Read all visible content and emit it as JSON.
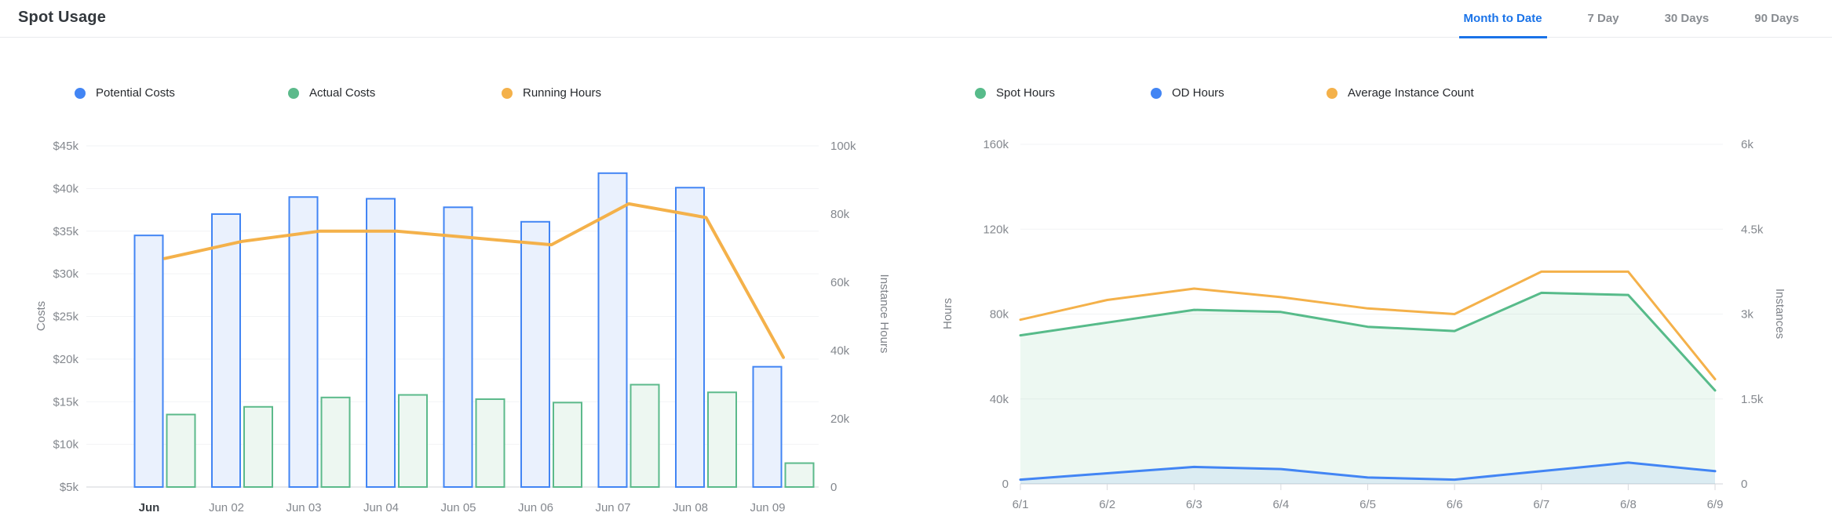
{
  "header": {
    "title": "Spot Usage",
    "tabs": [
      {
        "label": "Month to Date",
        "active": true
      },
      {
        "label": "7 Day",
        "active": false
      },
      {
        "label": "30 Days",
        "active": false
      },
      {
        "label": "90 Days",
        "active": false
      }
    ],
    "active_tab_color": "#1a73e8"
  },
  "chart_data": [
    {
      "id": "spot-usage-costs",
      "type": "bar",
      "title": "",
      "categories": [
        "Jun",
        "Jun 02",
        "Jun 03",
        "Jun 04",
        "Jun 05",
        "Jun 06",
        "Jun 07",
        "Jun 08",
        "Jun 09"
      ],
      "emphasized_first_category": true,
      "series": [
        {
          "name": "Potential Costs",
          "type": "bar",
          "axis": "left",
          "color": "#4285f4",
          "fill": "#eaf1fd",
          "values": [
            34500,
            37000,
            39000,
            38800,
            37800,
            36100,
            41800,
            40100,
            19100
          ]
        },
        {
          "name": "Actual Costs",
          "type": "bar",
          "axis": "left",
          "color": "#5cba8b",
          "fill": "#edf7f1",
          "values": [
            13500,
            14400,
            15500,
            15800,
            15300,
            14900,
            17000,
            16100,
            7800
          ]
        },
        {
          "name": "Running Hours",
          "type": "line",
          "axis": "right",
          "color": "#f4b14a",
          "values": [
            67000,
            72000,
            75000,
            75000,
            73000,
            71000,
            83000,
            79000,
            38000
          ]
        }
      ],
      "left_axis": {
        "label": "Costs",
        "min": 5000,
        "max": 45000,
        "ticks": [
          "$45k",
          "$40k",
          "$35k",
          "$30k",
          "$25k",
          "$20k",
          "$15k",
          "$10k",
          "$5k"
        ]
      },
      "right_axis": {
        "label": "Instance Hours",
        "min": 0,
        "max": 100000,
        "ticks": [
          "100k",
          "80k",
          "60k",
          "40k",
          "20k",
          "0"
        ]
      },
      "grid": true,
      "legend_position": "top"
    },
    {
      "id": "spot-usage-hours",
      "type": "area",
      "title": "",
      "categories": [
        "6/1",
        "6/2",
        "6/3",
        "6/4",
        "6/5",
        "6/6",
        "6/7",
        "6/8",
        "6/9"
      ],
      "emphasized_first_category": false,
      "series": [
        {
          "name": "Spot Hours",
          "type": "area",
          "axis": "left",
          "color": "#57bb8a",
          "fill_rgba": "rgba(87,187,138,0.11)",
          "values": [
            70000,
            76000,
            82000,
            81000,
            74000,
            72000,
            90000,
            89000,
            44000
          ]
        },
        {
          "name": "OD Hours",
          "type": "area",
          "axis": "left",
          "color": "#4285f4",
          "fill_rgba": "rgba(66,133,244,0.10)",
          "values": [
            2000,
            5000,
            8000,
            7000,
            3000,
            2000,
            6000,
            10000,
            6000
          ]
        },
        {
          "name": "Average Instance Count",
          "type": "line",
          "axis": "right",
          "color": "#f4b14a",
          "values": [
            2900,
            3250,
            3450,
            3300,
            3100,
            3000,
            3750,
            3750,
            1850
          ]
        }
      ],
      "left_axis": {
        "label": "Hours",
        "min": 0,
        "max": 160000,
        "ticks": [
          "160k",
          "120k",
          "80k",
          "40k",
          "0"
        ]
      },
      "right_axis": {
        "label": "Instances",
        "min": 0,
        "max": 6000,
        "ticks": [
          "6k",
          "4.5k",
          "3k",
          "1.5k",
          "0"
        ]
      },
      "grid": true,
      "legend_position": "top"
    }
  ]
}
